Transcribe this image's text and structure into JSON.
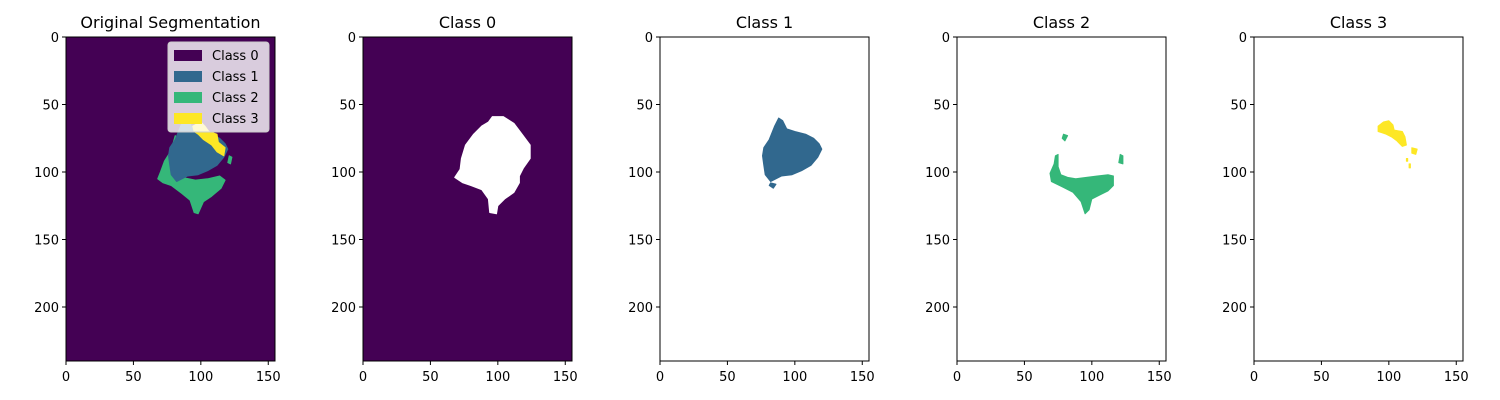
{
  "chart_data": [
    {
      "type": "heatmap",
      "title": "Original Segmentation",
      "xlabel": "",
      "ylabel": "",
      "xlim": [
        0,
        155
      ],
      "ylim": [
        240,
        0
      ],
      "xticks": [
        "0",
        "50",
        "100",
        "150"
      ],
      "yticks": [
        "0",
        "50",
        "100",
        "150",
        "200"
      ],
      "background": "Class 0",
      "legend": {
        "position": "top-right",
        "entries": [
          {
            "label": "Class 0",
            "color": "#440154"
          },
          {
            "label": "Class 1",
            "color": "#31688e"
          },
          {
            "label": "Class 2",
            "color": "#35b779"
          },
          {
            "label": "Class 3",
            "color": "#fde725"
          }
        ]
      },
      "regions": [
        {
          "class": "Class 2",
          "color": "#35b779",
          "points": [
            [
              81,
              73
            ],
            [
              83,
              75
            ],
            [
              78,
              84
            ],
            [
              73,
              92
            ],
            [
              70,
              100
            ],
            [
              68,
              105
            ],
            [
              72,
              108
            ],
            [
              78,
              110
            ],
            [
              86,
              116
            ],
            [
              92,
              121
            ],
            [
              95,
              130
            ],
            [
              98,
              131
            ],
            [
              102,
              122
            ],
            [
              108,
              118
            ],
            [
              115,
              112
            ],
            [
              118,
              106
            ],
            [
              114,
              103
            ],
            [
              105,
              105
            ],
            [
              96,
              106
            ],
            [
              86,
              104
            ],
            [
              78,
              98
            ],
            [
              76,
              88
            ],
            [
              79,
              80
            ]
          ]
        },
        {
          "class": "Class 2",
          "color": "#35b779",
          "points": [
            [
              121,
              88
            ],
            [
              123,
              89
            ],
            [
              122,
              94
            ],
            [
              120,
              93
            ]
          ]
        },
        {
          "class": "Class 1",
          "color": "#31688e",
          "points": [
            [
              85,
              66
            ],
            [
              88,
              60
            ],
            [
              91,
              62
            ],
            [
              94,
              68
            ],
            [
              100,
              70
            ],
            [
              108,
              72
            ],
            [
              114,
              75
            ],
            [
              118,
              79
            ],
            [
              120,
              83
            ],
            [
              117,
              89
            ],
            [
              112,
              95
            ],
            [
              105,
              99
            ],
            [
              98,
              102
            ],
            [
              90,
              103
            ],
            [
              82,
              107
            ],
            [
              78,
              102
            ],
            [
              77,
              95
            ],
            [
              76,
              88
            ],
            [
              77,
              82
            ],
            [
              81,
              76
            ]
          ]
        },
        {
          "class": "Class 3",
          "color": "#fde725",
          "points": [
            [
              94,
              66
            ],
            [
              100,
              63
            ],
            [
              103,
              66
            ],
            [
              106,
              70
            ],
            [
              112,
              72
            ],
            [
              113,
              78
            ],
            [
              118,
              82
            ],
            [
              117,
              88
            ],
            [
              112,
              85
            ],
            [
              108,
              80
            ],
            [
              102,
              76
            ],
            [
              98,
              72
            ],
            [
              95,
              70
            ]
          ]
        }
      ]
    },
    {
      "type": "heatmap",
      "title": "Class 0",
      "xlim": [
        0,
        155
      ],
      "ylim": [
        240,
        0
      ],
      "xticks": [
        "0",
        "50",
        "100",
        "150"
      ],
      "yticks": [
        "0",
        "50",
        "100",
        "150",
        "200"
      ],
      "background": "Class 0",
      "regions": [
        {
          "class": "empty",
          "color": "#ffffff",
          "points": [
            [
              93,
              63
            ],
            [
              96,
              59
            ],
            [
              104,
              59
            ],
            [
              112,
              64
            ],
            [
              118,
              72
            ],
            [
              124,
              80
            ],
            [
              124,
              90
            ],
            [
              119,
              97
            ],
            [
              116,
              103
            ],
            [
              116,
              108
            ],
            [
              112,
              115
            ],
            [
              105,
              120
            ],
            [
              100,
              125
            ],
            [
              99,
              131
            ],
            [
              94,
              130
            ],
            [
              93,
              120
            ],
            [
              88,
              113
            ],
            [
              80,
              110
            ],
            [
              74,
              108
            ],
            [
              68,
              104
            ],
            [
              72,
              98
            ],
            [
              73,
              90
            ],
            [
              76,
              80
            ],
            [
              82,
              72
            ],
            [
              88,
              66
            ]
          ]
        }
      ]
    },
    {
      "type": "heatmap",
      "title": "Class 1",
      "xlim": [
        0,
        155
      ],
      "ylim": [
        240,
        0
      ],
      "xticks": [
        "0",
        "50",
        "100",
        "150"
      ],
      "yticks": [
        "0",
        "50",
        "100",
        "150",
        "200"
      ],
      "background": "empty",
      "regions": [
        {
          "class": "Class 1",
          "color": "#31688e",
          "points": [
            [
              85,
              66
            ],
            [
              88,
              60
            ],
            [
              91,
              62
            ],
            [
              94,
              68
            ],
            [
              100,
              70
            ],
            [
              108,
              72
            ],
            [
              114,
              75
            ],
            [
              118,
              79
            ],
            [
              120,
              83
            ],
            [
              117,
              89
            ],
            [
              112,
              95
            ],
            [
              105,
              99
            ],
            [
              98,
              102
            ],
            [
              90,
              103
            ],
            [
              82,
              107
            ],
            [
              78,
              102
            ],
            [
              77,
              95
            ],
            [
              76,
              88
            ],
            [
              77,
              82
            ],
            [
              81,
              76
            ]
          ]
        },
        {
          "class": "Class 1",
          "color": "#31688e",
          "points": [
            [
              82,
              108
            ],
            [
              86,
              109
            ],
            [
              84,
              112
            ],
            [
              81,
              110
            ]
          ]
        }
      ]
    },
    {
      "type": "heatmap",
      "title": "Class 2",
      "xlim": [
        0,
        155
      ],
      "ylim": [
        240,
        0
      ],
      "xticks": [
        "0",
        "50",
        "100",
        "150"
      ],
      "yticks": [
        "0",
        "50",
        "100",
        "150",
        "200"
      ],
      "background": "empty",
      "regions": [
        {
          "class": "Class 2",
          "color": "#35b779",
          "points": [
            [
              73,
              88
            ],
            [
              75,
              87
            ],
            [
              75,
              96
            ],
            [
              77,
              102
            ],
            [
              82,
              104
            ],
            [
              88,
              105
            ],
            [
              96,
              104
            ],
            [
              104,
              103
            ],
            [
              112,
              102
            ],
            [
              116,
              103
            ],
            [
              116,
              110
            ],
            [
              112,
              114
            ],
            [
              106,
              117
            ],
            [
              100,
              120
            ],
            [
              98,
              128
            ],
            [
              95,
              131
            ],
            [
              92,
              122
            ],
            [
              86,
              115
            ],
            [
              78,
              111
            ],
            [
              70,
              107
            ],
            [
              69,
              101
            ],
            [
              72,
              94
            ]
          ]
        },
        {
          "class": "Class 2",
          "color": "#35b779",
          "points": [
            [
              79,
              72
            ],
            [
              82,
              73
            ],
            [
              80,
              77
            ],
            [
              78,
              75
            ]
          ]
        },
        {
          "class": "Class 2",
          "color": "#35b779",
          "points": [
            [
              121,
              87
            ],
            [
              123,
              88
            ],
            [
              123,
              94
            ],
            [
              120,
              93
            ]
          ]
        }
      ]
    },
    {
      "type": "heatmap",
      "title": "Class 3",
      "xlim": [
        0,
        155
      ],
      "ylim": [
        240,
        0
      ],
      "xticks": [
        "0",
        "50",
        "100",
        "150"
      ],
      "yticks": [
        "0",
        "50",
        "100",
        "150",
        "200"
      ],
      "background": "empty",
      "regions": [
        {
          "class": "Class 3",
          "color": "#fde725",
          "points": [
            [
              92,
              66
            ],
            [
              96,
              63
            ],
            [
              100,
              62
            ],
            [
              103,
              65
            ],
            [
              104,
              69
            ],
            [
              110,
              70
            ],
            [
              112,
              74
            ],
            [
              113,
              80
            ],
            [
              110,
              81
            ],
            [
              106,
              77
            ],
            [
              102,
              74
            ],
            [
              98,
              72
            ],
            [
              95,
              71
            ],
            [
              92,
              70
            ]
          ]
        },
        {
          "class": "Class 3",
          "color": "#fde725",
          "points": [
            [
              117,
              82
            ],
            [
              121,
              83
            ],
            [
              120,
              87
            ],
            [
              117,
              86
            ]
          ]
        },
        {
          "class": "Class 3",
          "color": "#fde725",
          "points": [
            [
              113,
              90
            ],
            [
              114,
              90
            ],
            [
              114,
              92
            ],
            [
              113,
              92
            ]
          ]
        },
        {
          "class": "Class 3",
          "color": "#fde725",
          "points": [
            [
              115,
              94
            ],
            [
              116,
              94
            ],
            [
              116,
              97
            ],
            [
              115,
              97
            ]
          ]
        }
      ]
    }
  ],
  "colors": {
    "Class 0": "#440154",
    "empty": "#ffffff"
  }
}
